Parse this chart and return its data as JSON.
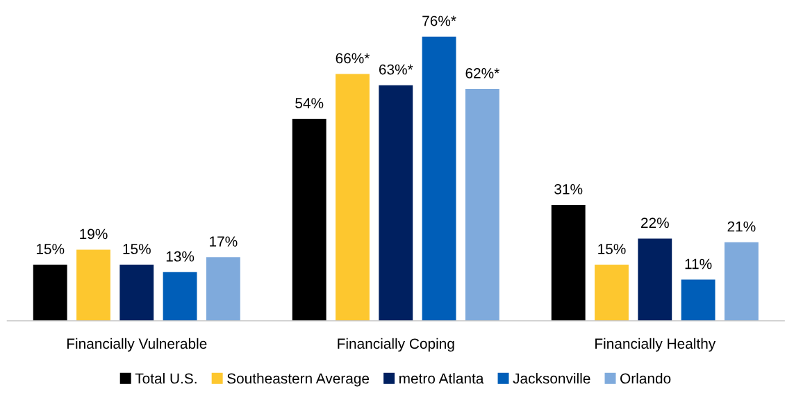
{
  "chart_data": {
    "type": "bar",
    "categories": [
      "Financially Vulnerable",
      "Financially Coping",
      "Financially Healthy"
    ],
    "series": [
      {
        "name": "Total U.S.",
        "color": "#000000",
        "values": [
          15,
          54,
          31
        ],
        "value_labels": [
          "15%",
          "54%",
          "31%"
        ]
      },
      {
        "name": "Southeastern Average",
        "color": "#fdc72f",
        "values": [
          19,
          66,
          15
        ],
        "value_labels": [
          "19%",
          "66%*",
          "15%"
        ]
      },
      {
        "name": "metro Atlanta",
        "color": "#002060",
        "values": [
          15,
          63,
          22
        ],
        "value_labels": [
          "15%",
          "63%*",
          "22%"
        ]
      },
      {
        "name": "Jacksonville",
        "color": "#005eb8",
        "values": [
          13,
          76,
          11
        ],
        "value_labels": [
          "13%",
          "76%*",
          "11%"
        ]
      },
      {
        "name": "Orlando",
        "color": "#7faadc",
        "values": [
          17,
          62,
          21
        ],
        "value_labels": [
          "17%",
          "62%*",
          "21%"
        ]
      }
    ],
    "legend": "bottom",
    "grid": false
  }
}
